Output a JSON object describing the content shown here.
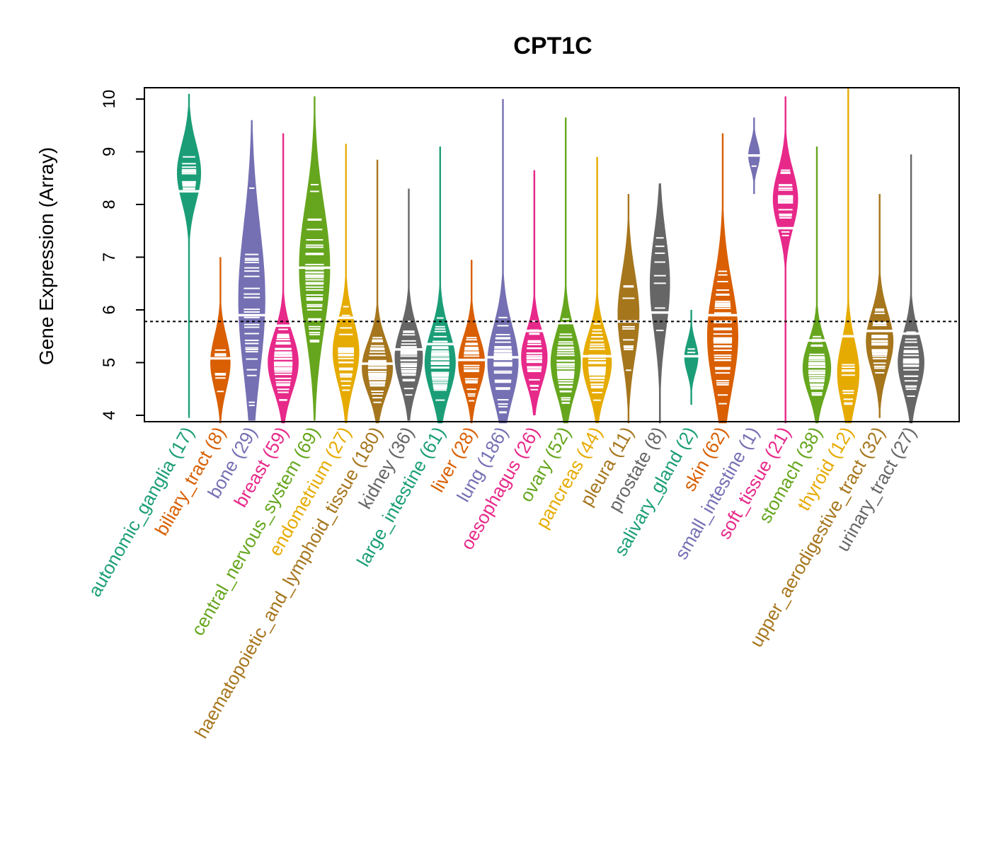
{
  "chart_data": {
    "type": "violin",
    "title": "CPT1C",
    "xlabel": "",
    "ylabel": "Gene Expression (Array)",
    "ylim": [
      3.9,
      10.2
    ],
    "yticks": [
      4,
      5,
      6,
      7,
      8,
      9,
      10
    ],
    "reference_line": 5.78,
    "grid": false,
    "legend": "none",
    "categories": [
      {
        "name": "autonomic_ganglia",
        "n": 17,
        "color": "#1B9E77",
        "min": 4.0,
        "max": 10.1,
        "median": 8.25,
        "mode": 8.6,
        "spread": 0.55,
        "outlier_low": 4.5
      },
      {
        "name": "biliary_tract",
        "n": 8,
        "color": "#D95F02",
        "min": 3.85,
        "max": 7.0,
        "median": 5.08,
        "mode": 5.0,
        "spread": 0.5
      },
      {
        "name": "bone",
        "n": 29,
        "color": "#7570B3",
        "min": 3.9,
        "max": 9.6,
        "median": 5.9,
        "mode": 6.2,
        "spread": 1.4
      },
      {
        "name": "breast",
        "n": 59,
        "color": "#E7298A",
        "min": 3.85,
        "max": 9.35,
        "median": 5.7,
        "mode": 5.0,
        "spread": 0.55
      },
      {
        "name": "central_nervous_system",
        "n": 69,
        "color": "#66A61E",
        "min": 3.9,
        "max": 10.05,
        "median": 6.8,
        "mode": 6.8,
        "spread": 1.2
      },
      {
        "name": "endometrium",
        "n": 27,
        "color": "#E6AB02",
        "min": 3.85,
        "max": 9.15,
        "median": 5.85,
        "mode": 5.2,
        "spread": 0.6
      },
      {
        "name": "haematopoietic_and_lymphoid_tissue",
        "n": 180,
        "color": "#A6761D",
        "min": 3.85,
        "max": 8.85,
        "median": 4.98,
        "mode": 4.9,
        "spread": 0.5
      },
      {
        "name": "kidney",
        "n": 36,
        "color": "#666666",
        "min": 3.9,
        "max": 8.3,
        "median": 5.25,
        "mode": 5.1,
        "spread": 0.55
      },
      {
        "name": "large_intestine",
        "n": 61,
        "color": "#1B9E77",
        "min": 3.85,
        "max": 9.1,
        "median": 5.35,
        "mode": 5.0,
        "spread": 0.6
      },
      {
        "name": "liver",
        "n": 28,
        "color": "#D95F02",
        "min": 3.85,
        "max": 6.95,
        "median": 5.05,
        "mode": 5.0,
        "spread": 0.5
      },
      {
        "name": "lung",
        "n": 186,
        "color": "#7570B3",
        "min": 3.85,
        "max": 10.0,
        "median": 5.1,
        "mode": 5.0,
        "spread": 0.7
      },
      {
        "name": "oesophagus",
        "n": 26,
        "color": "#E7298A",
        "min": 4.0,
        "max": 8.65,
        "median": 5.6,
        "mode": 5.1,
        "spread": 0.5
      },
      {
        "name": "ovary",
        "n": 52,
        "color": "#66A61E",
        "min": 3.85,
        "max": 9.65,
        "median": 5.75,
        "mode": 5.0,
        "spread": 0.6
      },
      {
        "name": "pancreas",
        "n": 44,
        "color": "#E6AB02",
        "min": 3.85,
        "max": 8.9,
        "median": 5.12,
        "mode": 5.0,
        "spread": 0.55
      },
      {
        "name": "pleura",
        "n": 11,
        "color": "#A6761D",
        "min": 3.85,
        "max": 8.2,
        "median": 5.78,
        "mode": 5.9,
        "spread": 0.8
      },
      {
        "name": "prostate",
        "n": 8,
        "color": "#666666",
        "min": 3.85,
        "max": 8.4,
        "median": 5.95,
        "mode": 6.5,
        "spread": 0.9
      },
      {
        "name": "salivary_gland",
        "n": 2,
        "color": "#1B9E77",
        "min": 4.2,
        "max": 6.0,
        "median": 5.12,
        "mode": 5.1,
        "spread": 0.3
      },
      {
        "name": "skin",
        "n": 62,
        "color": "#D95F02",
        "min": 3.85,
        "max": 9.35,
        "median": 5.9,
        "mode": 5.5,
        "spread": 1.0
      },
      {
        "name": "small_intestine",
        "n": 1,
        "color": "#7570B3",
        "min": 8.2,
        "max": 9.65,
        "median": 8.93,
        "mode": 8.93,
        "spread": 0.25
      },
      {
        "name": "soft_tissue",
        "n": 21,
        "color": "#E7298A",
        "min": 3.85,
        "max": 10.05,
        "median": 7.55,
        "mode": 8.1,
        "spread": 0.55
      },
      {
        "name": "stomach",
        "n": 38,
        "color": "#66A61E",
        "min": 3.85,
        "max": 9.1,
        "median": 5.42,
        "mode": 4.9,
        "spread": 0.5
      },
      {
        "name": "thyroid",
        "n": 12,
        "color": "#E6AB02",
        "min": 3.85,
        "max": 10.2,
        "median": 5.5,
        "mode": 4.8,
        "spread": 0.6
      },
      {
        "name": "upper_aerodigestive_tract",
        "n": 32,
        "color": "#A6761D",
        "min": 3.95,
        "max": 8.2,
        "median": 5.6,
        "mode": 5.4,
        "spread": 0.55
      },
      {
        "name": "urinary_tract",
        "n": 27,
        "color": "#666666",
        "min": 3.85,
        "max": 8.95,
        "median": 5.55,
        "mode": 5.0,
        "spread": 0.55
      }
    ]
  }
}
